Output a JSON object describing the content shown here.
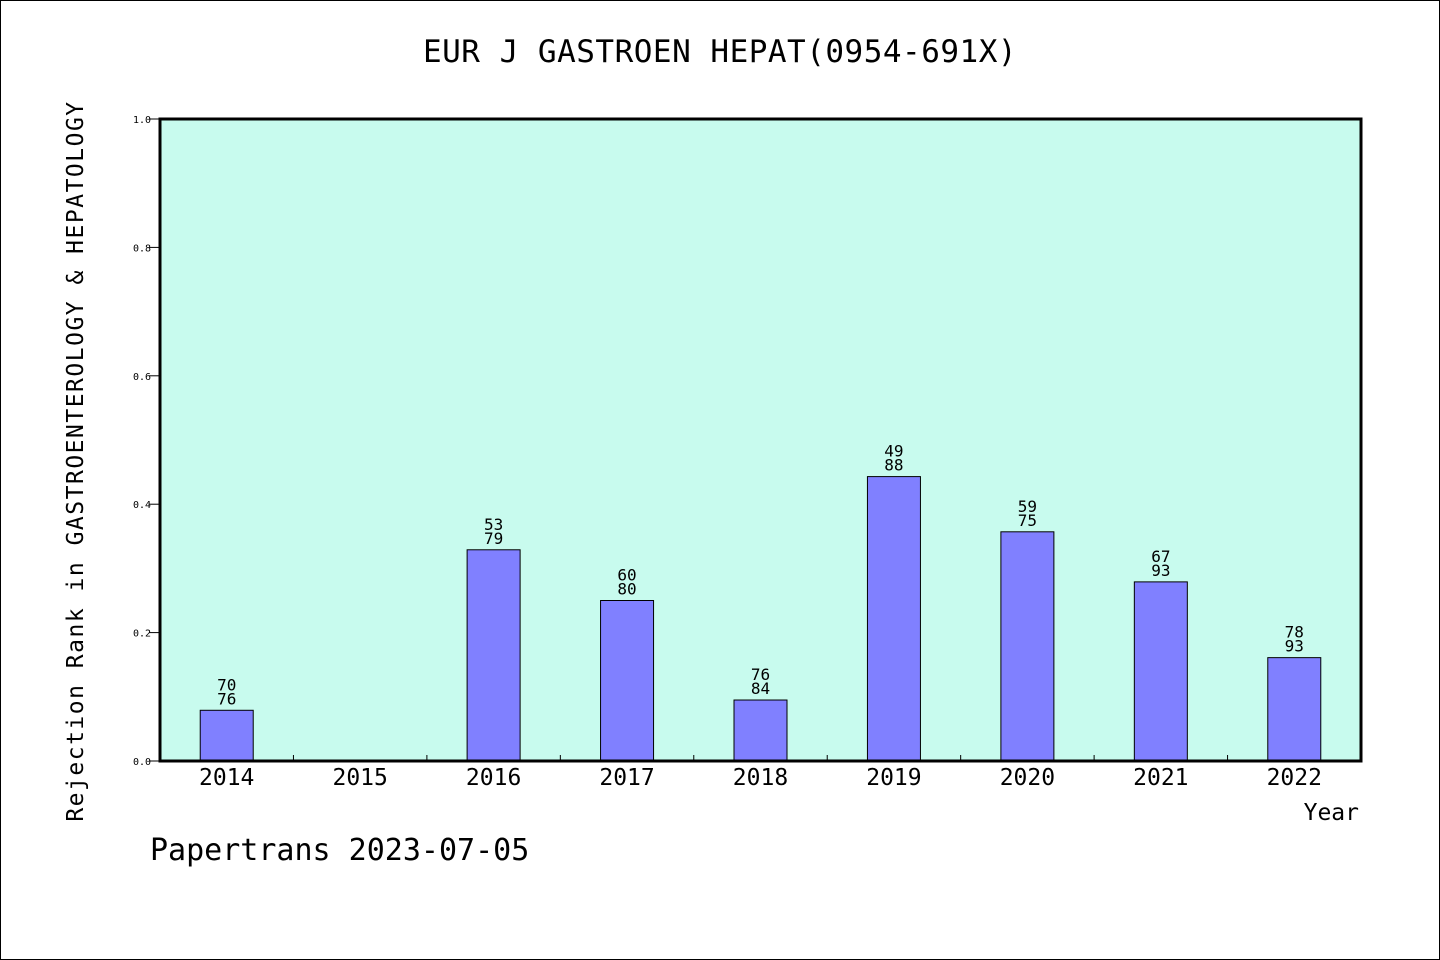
{
  "chart_data": {
    "type": "bar",
    "title": "EUR J GASTROEN HEPAT(0954-691X)",
    "xlabel": "Year",
    "ylabel": "Rejection Rank in GASTROENTEROLOGY & HEPATOLOGY",
    "ylim": [
      0,
      1.0
    ],
    "yticks": [
      "0.0",
      "0.2",
      "0.4",
      "0.6",
      "0.8",
      "1.0"
    ],
    "categories": [
      "2014",
      "2015",
      "2016",
      "2017",
      "2018",
      "2019",
      "2020",
      "2021",
      "2022"
    ],
    "values": [
      0.079,
      null,
      0.329,
      0.25,
      0.095,
      0.443,
      0.357,
      0.279,
      0.161
    ],
    "labels_top": [
      "70",
      "",
      "53",
      "60",
      "76",
      "49",
      "59",
      "67",
      "78"
    ],
    "labels_bottom": [
      "76",
      "",
      "79",
      "80",
      "84",
      "88",
      "75",
      "93",
      "93"
    ],
    "grid": false,
    "colors": {
      "plot_bg": "#c8fbee",
      "bar": "#8080ff",
      "axis": "#000000"
    }
  },
  "footer": {
    "text": "Papertrans 2023-07-05"
  }
}
